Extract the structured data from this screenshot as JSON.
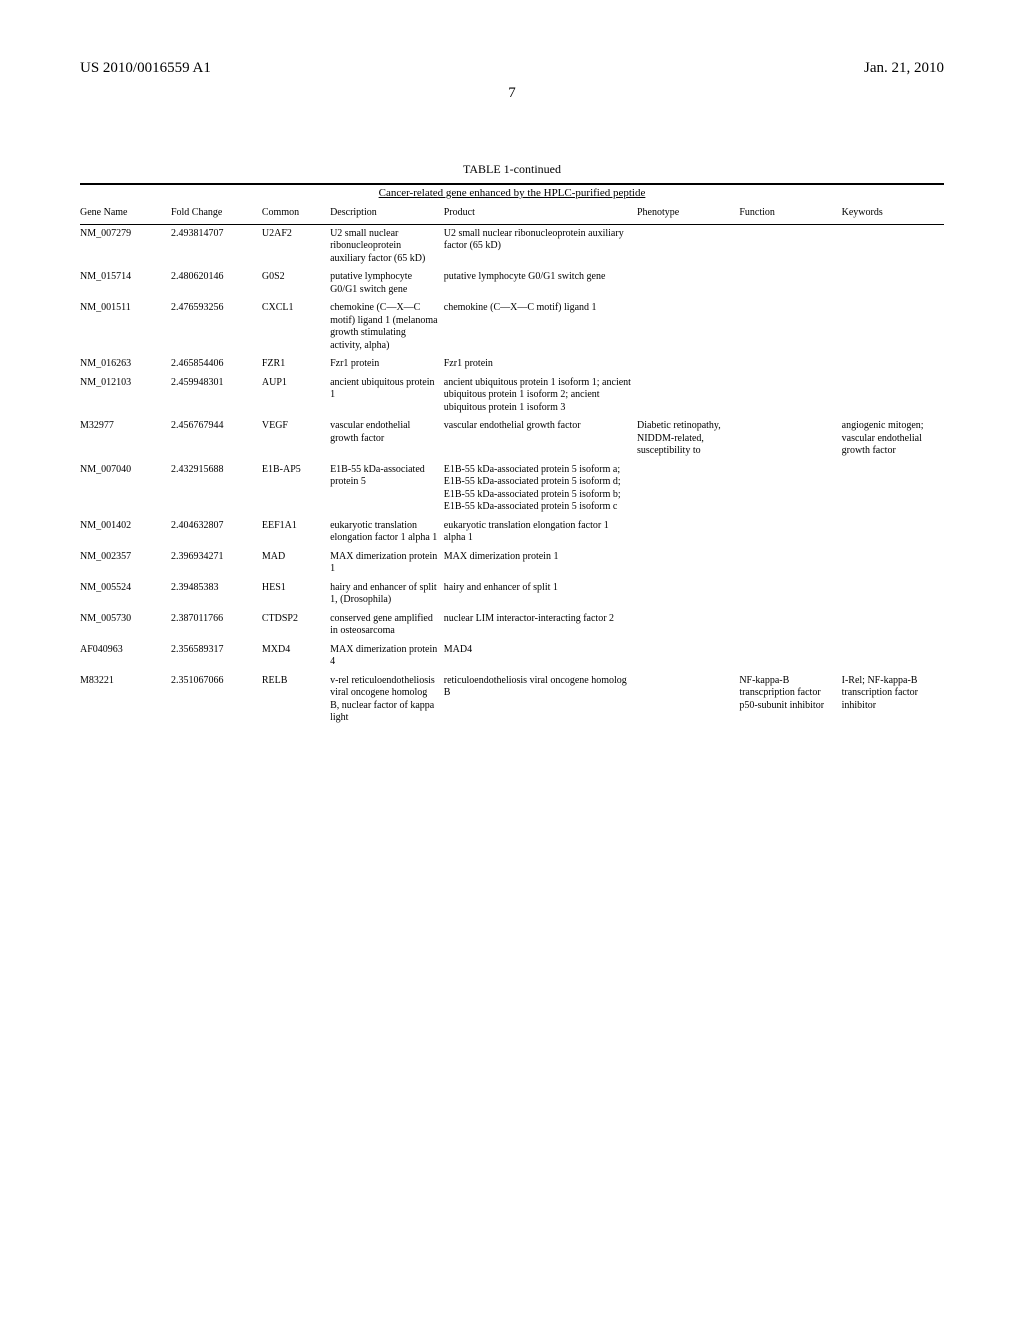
{
  "header": {
    "left": "US 2010/0016559 A1",
    "right": "Jan. 21, 2010",
    "page": "7"
  },
  "table": {
    "title": "TABLE 1-continued",
    "subtitle": "Cancer-related gene enhanced by the HPLC-purified peptide",
    "columns": [
      "Gene Name",
      "Fold Change",
      "Common",
      "Description",
      "Product",
      "Phenotype",
      "Function",
      "Keywords"
    ],
    "rows": [
      {
        "gene": "NM_007279",
        "fold": "2.493814707",
        "common": "U2AF2",
        "desc": "U2 small nuclear ribonucleoprotein auxiliary factor (65 kD)",
        "product": "U2 small nuclear ribonucleoprotein auxiliary factor (65 kD)",
        "pheno": "",
        "func": "",
        "key": ""
      },
      {
        "gene": "NM_015714",
        "fold": "2.480620146",
        "common": "G0S2",
        "desc": "putative lymphocyte G0/G1 switch gene",
        "product": "putative lymphocyte G0/G1 switch gene",
        "pheno": "",
        "func": "",
        "key": ""
      },
      {
        "gene": "NM_001511",
        "fold": "2.476593256",
        "common": "CXCL1",
        "desc": "chemokine (C—X—C motif) ligand 1 (melanoma growth stimulating activity, alpha)",
        "product": "chemokine (C—X—C motif) ligand 1",
        "pheno": "",
        "func": "",
        "key": ""
      },
      {
        "gene": "NM_016263",
        "fold": "2.465854406",
        "common": "FZR1",
        "desc": "Fzr1 protein",
        "product": "Fzr1 protein",
        "pheno": "",
        "func": "",
        "key": ""
      },
      {
        "gene": "NM_012103",
        "fold": "2.459948301",
        "common": "AUP1",
        "desc": "ancient ubiquitous protein 1",
        "product": "ancient ubiquitous protein 1 isoform 1; ancient ubiquitous protein 1 isoform 2; ancient ubiquitous protein 1 isoform 3",
        "pheno": "",
        "func": "",
        "key": ""
      },
      {
        "gene": "M32977",
        "fold": "2.456767944",
        "common": "VEGF",
        "desc": "vascular endothelial growth factor",
        "product": "vascular endothelial growth factor",
        "pheno": "Diabetic retinopathy, NIDDM-related, susceptibility to",
        "func": "",
        "key": "angiogenic mitogen; vascular endothelial growth factor"
      },
      {
        "gene": "NM_007040",
        "fold": "2.432915688",
        "common": "E1B-AP5",
        "desc": "E1B-55 kDa-associated protein 5",
        "product": "E1B-55 kDa-associated protein 5 isoform a; E1B-55 kDa-associated protein 5 isoform d; E1B-55 kDa-associated protein 5 isoform b; E1B-55 kDa-associated protein 5 isoform c",
        "pheno": "",
        "func": "",
        "key": ""
      },
      {
        "gene": "NM_001402",
        "fold": "2.404632807",
        "common": "EEF1A1",
        "desc": "eukaryotic translation elongation factor 1 alpha 1",
        "product": "eukaryotic translation elongation factor 1 alpha 1",
        "pheno": "",
        "func": "",
        "key": ""
      },
      {
        "gene": "NM_002357",
        "fold": "2.396934271",
        "common": "MAD",
        "desc": "MAX dimerization protein 1",
        "product": "MAX dimerization protein 1",
        "pheno": "",
        "func": "",
        "key": ""
      },
      {
        "gene": "NM_005524",
        "fold": "2.39485383",
        "common": "HES1",
        "desc": "hairy and enhancer of split 1, (Drosophila)",
        "product": "hairy and enhancer of split 1",
        "pheno": "",
        "func": "",
        "key": ""
      },
      {
        "gene": "NM_005730",
        "fold": "2.387011766",
        "common": "CTDSP2",
        "desc": "conserved gene amplified in osteosarcoma",
        "product": "nuclear LIM interactor-interacting factor 2",
        "pheno": "",
        "func": "",
        "key": ""
      },
      {
        "gene": "AF040963",
        "fold": "2.356589317",
        "common": "MXD4",
        "desc": "MAX dimerization protein 4",
        "product": "MAD4",
        "pheno": "",
        "func": "",
        "key": ""
      },
      {
        "gene": "M83221",
        "fold": "2.351067066",
        "common": "RELB",
        "desc": "v-rel reticuloendotheliosis viral oncogene homolog B, nuclear factor of kappa light",
        "product": "reticuloendotheliosis viral oncogene homolog B",
        "pheno": "",
        "func": "NF-kappa-B transcpription factor p50-subunit inhibitor",
        "key": "I-Rel; NF-kappa-B transcription factor inhibitor"
      }
    ]
  }
}
